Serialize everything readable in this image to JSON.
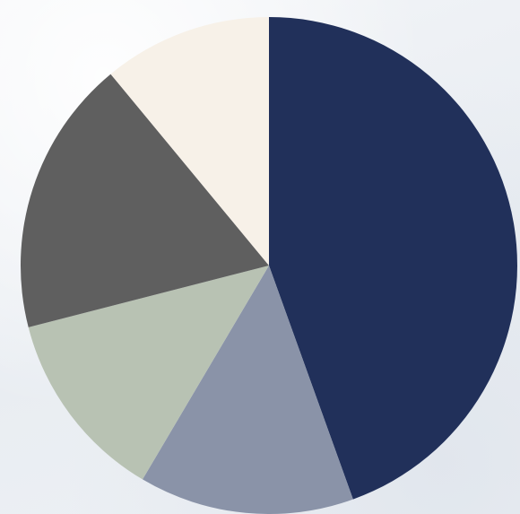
{
  "chart_data": {
    "type": "pie",
    "title": "",
    "slices": [
      {
        "value": 44.5,
        "color": "#21305a"
      },
      {
        "value": 14.0,
        "color": "#8a93a8"
      },
      {
        "value": 12.5,
        "color": "#b8c2b3"
      },
      {
        "value": 18.0,
        "color": "#5f5f5f"
      },
      {
        "value": 11.0,
        "color": "#f7f1e8"
      }
    ],
    "start_angle": "12 o'clock",
    "direction": "clockwise",
    "legend": "none",
    "data_labels": "none"
  }
}
